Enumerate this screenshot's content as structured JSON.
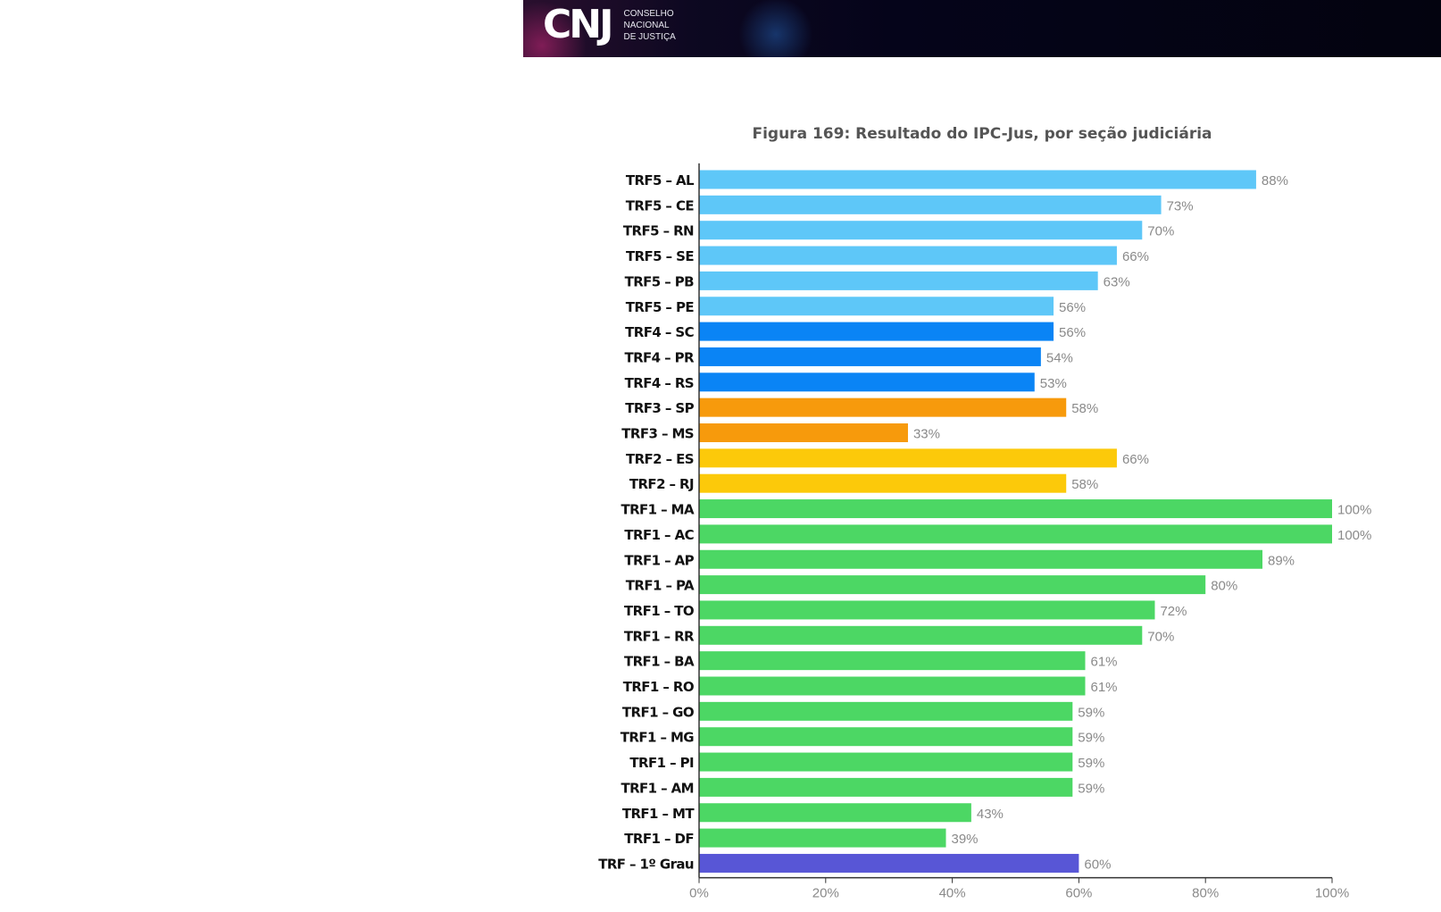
{
  "header": {
    "logo_mark": "CNJ",
    "logo_lines": [
      "CONSELHO",
      "NACIONAL",
      "DE JUSTIÇA"
    ]
  },
  "chart_data": {
    "type": "bar",
    "orientation": "horizontal",
    "title": "Figura 169: Resultado do IPC-Jus, por seção judiciária",
    "xlabel": "",
    "ylabel": "",
    "xlim": [
      0,
      100
    ],
    "x_ticks": [
      "0%",
      "20%",
      "40%",
      "60%",
      "80%",
      "100%"
    ],
    "grid": false,
    "categories": [
      "TRF5 – AL",
      "TRF5 – CE",
      "TRF5 – RN",
      "TRF5 – SE",
      "TRF5 – PB",
      "TRF5 – PE",
      "TRF4 – SC",
      "TRF4 – PR",
      "TRF4 – RS",
      "TRF3 – SP",
      "TRF3 – MS",
      "TRF2 – ES",
      "TRF2 – RJ",
      "TRF1 – MA",
      "TRF1 – AC",
      "TRF1 – AP",
      "TRF1 – PA",
      "TRF1 – TO",
      "TRF1 – RR",
      "TRF1 – BA",
      "TRF1 – RO",
      "TRF1 – GO",
      "TRF1 – MG",
      "TRF1 – PI",
      "TRF1 – AM",
      "TRF1 – MT",
      "TRF1 – DF",
      "TRF – 1º Grau"
    ],
    "values": [
      88,
      73,
      70,
      66,
      63,
      56,
      56,
      54,
      53,
      58,
      33,
      66,
      58,
      100,
      100,
      89,
      80,
      72,
      70,
      61,
      61,
      59,
      59,
      59,
      59,
      43,
      39,
      60
    ],
    "value_labels": [
      "88%",
      "73%",
      "70%",
      "66%",
      "63%",
      "56%",
      "56%",
      "54%",
      "53%",
      "58%",
      "33%",
      "66%",
      "58%",
      "100%",
      "100%",
      "89%",
      "80%",
      "72%",
      "70%",
      "61%",
      "61%",
      "59%",
      "59%",
      "59%",
      "59%",
      "43%",
      "39%",
      "60%"
    ],
    "colors": [
      "#5ec7f8",
      "#5ec7f8",
      "#5ec7f8",
      "#5ec7f8",
      "#5ec7f8",
      "#5ec7f8",
      "#0a84f5",
      "#0a84f5",
      "#0a84f5",
      "#f79a0c",
      "#f79a0c",
      "#fcc90a",
      "#fcc90a",
      "#4cd764",
      "#4cd764",
      "#4cd764",
      "#4cd764",
      "#4cd764",
      "#4cd764",
      "#4cd764",
      "#4cd764",
      "#4cd764",
      "#4cd764",
      "#4cd764",
      "#4cd764",
      "#4cd764",
      "#4cd764",
      "#5856d6"
    ]
  }
}
